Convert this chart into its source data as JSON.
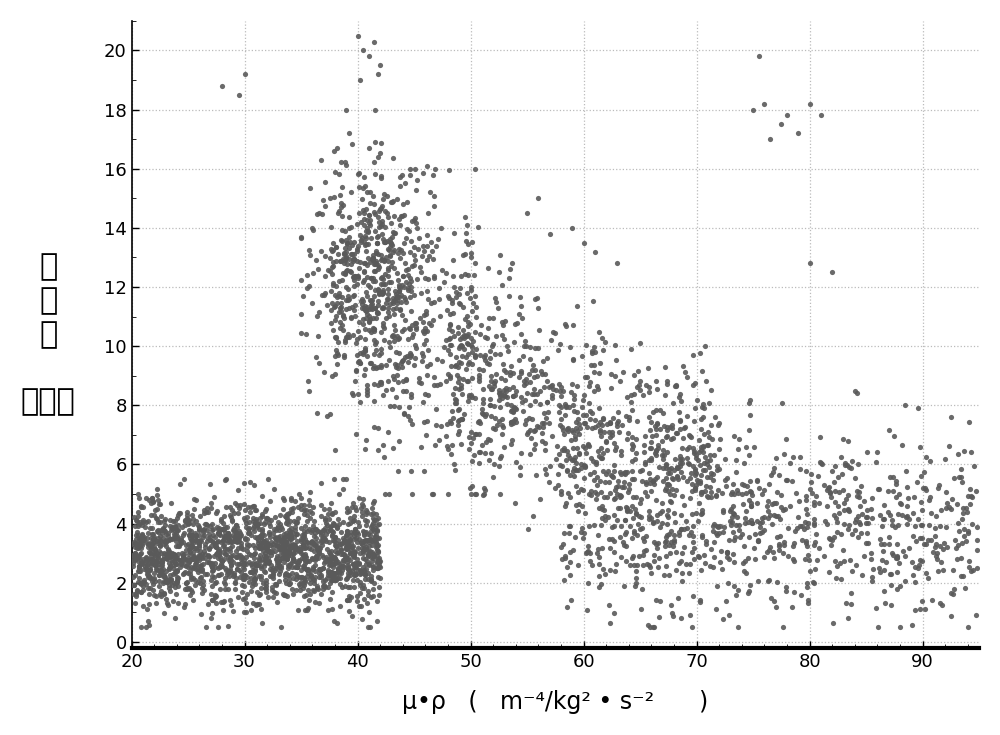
{
  "dot_color": "#5a5a5a",
  "dot_size": 14,
  "dot_alpha": 0.9,
  "background_color": "#ffffff",
  "xlim": [
    20,
    95
  ],
  "ylim": [
    -0.2,
    21
  ],
  "xticks": [
    20,
    30,
    40,
    50,
    60,
    70,
    80,
    90
  ],
  "yticks": [
    0,
    2,
    4,
    6,
    8,
    10,
    12,
    14,
    16,
    18,
    20
  ],
  "xlabel": "μ•ρ   (   m⁻⁴/kg² • s⁻²      )",
  "ylabel_line1": "孔",
  "ylabel_line2": "隙",
  "ylabel_line3": "度",
  "ylabel_line4": "（％）",
  "grid_color": "#bbbbbb",
  "grid_style": "dotted",
  "tick_label_fontsize": 13,
  "xlabel_fontsize": 17,
  "ylabel_fontsize": 22,
  "seed": 42
}
